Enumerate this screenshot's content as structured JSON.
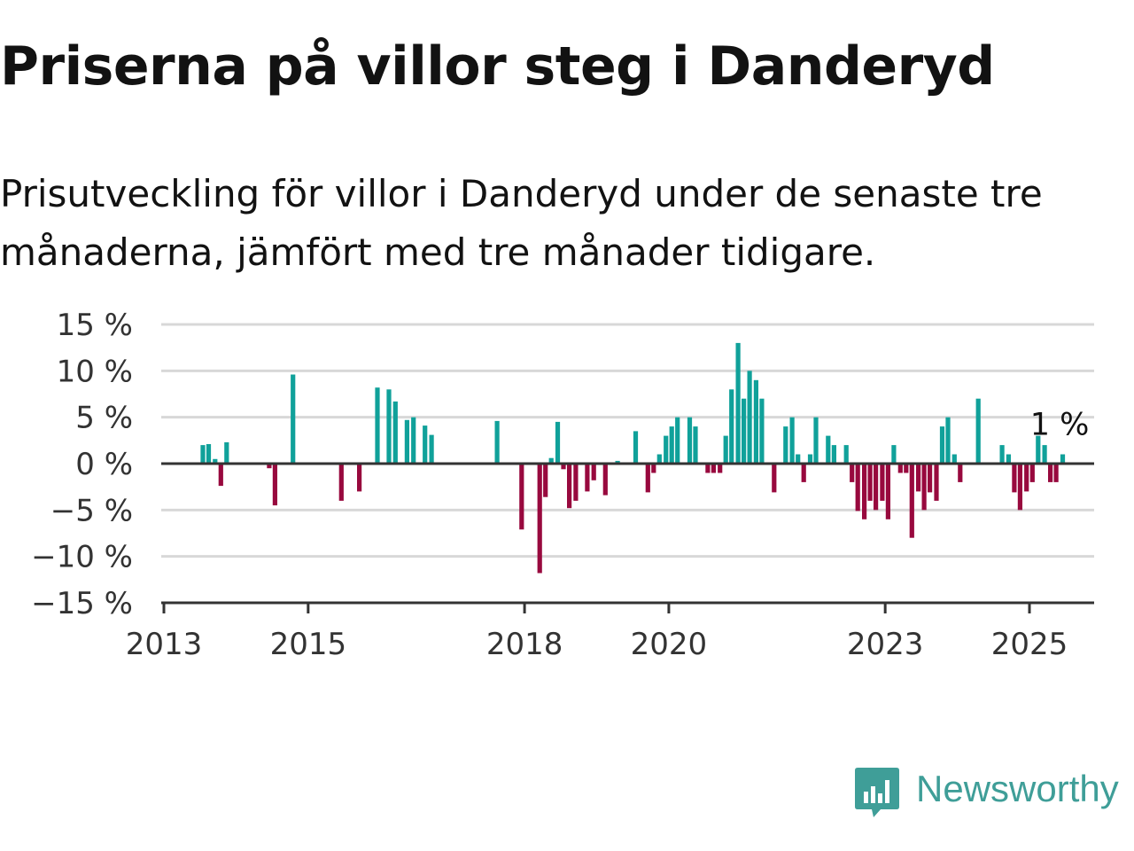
{
  "title": "Priserna på villor steg i Danderyd",
  "subtitle": "Prisutveckling för villor i Danderyd under de senaste tre månaderna, jämfört med tre månader tidigare.",
  "brand": {
    "name": "Newsworthy",
    "color": "#3f9e98"
  },
  "colors": {
    "positive": "#10a19a",
    "negative": "#98093e",
    "grid": "#d8d8d8",
    "axis": "#333333"
  },
  "chart_data": {
    "type": "bar",
    "unit": "%",
    "ylim": [
      -15,
      15
    ],
    "yticks": [
      "15 %",
      "10 %",
      "5 %",
      "0 %",
      "−5 %",
      "−10 %",
      "−15 %"
    ],
    "ytick_values": [
      15,
      10,
      5,
      0,
      -5,
      -10,
      -15
    ],
    "xticks": [
      "2013",
      "2015",
      "2018",
      "2020",
      "2023",
      "2025"
    ],
    "xtick_values": [
      2013,
      2015,
      2018,
      2020,
      2023,
      2025
    ],
    "grid": true,
    "last_label": "1 %",
    "bars": [
      {
        "t": 2013.54,
        "v": 2.0
      },
      {
        "t": 2013.62,
        "v": 2.1
      },
      {
        "t": 2013.71,
        "v": 0.5
      },
      {
        "t": 2013.79,
        "v": -2.4
      },
      {
        "t": 2013.87,
        "v": 2.3
      },
      {
        "t": 2014.46,
        "v": -0.5
      },
      {
        "t": 2014.54,
        "v": -4.5
      },
      {
        "t": 2014.79,
        "v": 9.6
      },
      {
        "t": 2015.46,
        "v": -4.0
      },
      {
        "t": 2015.71,
        "v": -3.0
      },
      {
        "t": 2015.96,
        "v": 8.2
      },
      {
        "t": 2016.12,
        "v": 8.0
      },
      {
        "t": 2016.21,
        "v": 6.7
      },
      {
        "t": 2016.37,
        "v": 4.7
      },
      {
        "t": 2016.46,
        "v": 5.0
      },
      {
        "t": 2016.62,
        "v": 4.1
      },
      {
        "t": 2016.71,
        "v": 3.1
      },
      {
        "t": 2017.62,
        "v": 4.6
      },
      {
        "t": 2017.96,
        "v": -7.1
      },
      {
        "t": 2018.21,
        "v": -11.8
      },
      {
        "t": 2018.29,
        "v": -3.6
      },
      {
        "t": 2018.37,
        "v": 0.6
      },
      {
        "t": 2018.46,
        "v": 4.5
      },
      {
        "t": 2018.54,
        "v": -0.6
      },
      {
        "t": 2018.62,
        "v": -4.8
      },
      {
        "t": 2018.71,
        "v": -4.0
      },
      {
        "t": 2018.87,
        "v": -3.0
      },
      {
        "t": 2018.96,
        "v": -1.8
      },
      {
        "t": 2019.12,
        "v": -3.4
      },
      {
        "t": 2019.29,
        "v": 0.3
      },
      {
        "t": 2019.54,
        "v": 3.5
      },
      {
        "t": 2019.71,
        "v": -3.1
      },
      {
        "t": 2019.79,
        "v": -1.0
      },
      {
        "t": 2019.87,
        "v": 1.0
      },
      {
        "t": 2019.96,
        "v": 3.0
      },
      {
        "t": 2020.04,
        "v": 4.0
      },
      {
        "t": 2020.12,
        "v": 5.0
      },
      {
        "t": 2020.29,
        "v": 5.0
      },
      {
        "t": 2020.37,
        "v": 4.0
      },
      {
        "t": 2020.54,
        "v": -1.0
      },
      {
        "t": 2020.62,
        "v": -1.0
      },
      {
        "t": 2020.71,
        "v": -1.0
      },
      {
        "t": 2020.79,
        "v": 3.0
      },
      {
        "t": 2020.87,
        "v": 8.0
      },
      {
        "t": 2020.96,
        "v": 13.0
      },
      {
        "t": 2021.04,
        "v": 7.0
      },
      {
        "t": 2021.12,
        "v": 10.0
      },
      {
        "t": 2021.21,
        "v": 9.0
      },
      {
        "t": 2021.29,
        "v": 7.0
      },
      {
        "t": 2021.46,
        "v": -3.1
      },
      {
        "t": 2021.62,
        "v": 4.0
      },
      {
        "t": 2021.71,
        "v": 5.0
      },
      {
        "t": 2021.79,
        "v": 1.0
      },
      {
        "t": 2021.87,
        "v": -2.0
      },
      {
        "t": 2021.96,
        "v": 1.0
      },
      {
        "t": 2022.04,
        "v": 5.0
      },
      {
        "t": 2022.21,
        "v": 3.0
      },
      {
        "t": 2022.29,
        "v": 2.0
      },
      {
        "t": 2022.46,
        "v": 2.0
      },
      {
        "t": 2022.54,
        "v": -2.0
      },
      {
        "t": 2022.62,
        "v": -5.1
      },
      {
        "t": 2022.71,
        "v": -6.0
      },
      {
        "t": 2022.79,
        "v": -4.0
      },
      {
        "t": 2022.87,
        "v": -5.0
      },
      {
        "t": 2022.96,
        "v": -4.0
      },
      {
        "t": 2023.04,
        "v": -6.0
      },
      {
        "t": 2023.12,
        "v": 2.0
      },
      {
        "t": 2023.21,
        "v": -1.0
      },
      {
        "t": 2023.29,
        "v": -1.0
      },
      {
        "t": 2023.37,
        "v": -8.0
      },
      {
        "t": 2023.46,
        "v": -3.0
      },
      {
        "t": 2023.54,
        "v": -5.0
      },
      {
        "t": 2023.62,
        "v": -3.1
      },
      {
        "t": 2023.71,
        "v": -4.0
      },
      {
        "t": 2023.79,
        "v": 4.0
      },
      {
        "t": 2023.87,
        "v": 5.0
      },
      {
        "t": 2023.96,
        "v": 1.0
      },
      {
        "t": 2024.04,
        "v": -2.0
      },
      {
        "t": 2024.29,
        "v": 7.0
      },
      {
        "t": 2024.62,
        "v": 2.0
      },
      {
        "t": 2024.71,
        "v": 1.0
      },
      {
        "t": 2024.79,
        "v": -3.1
      },
      {
        "t": 2024.87,
        "v": -5.0
      },
      {
        "t": 2024.96,
        "v": -3.0
      },
      {
        "t": 2025.04,
        "v": -2.0
      },
      {
        "t": 2025.12,
        "v": 3.0
      },
      {
        "t": 2025.21,
        "v": 2.0
      },
      {
        "t": 2025.29,
        "v": -2.0
      },
      {
        "t": 2025.37,
        "v": -2.0
      },
      {
        "t": 2025.46,
        "v": 1.0
      }
    ]
  }
}
